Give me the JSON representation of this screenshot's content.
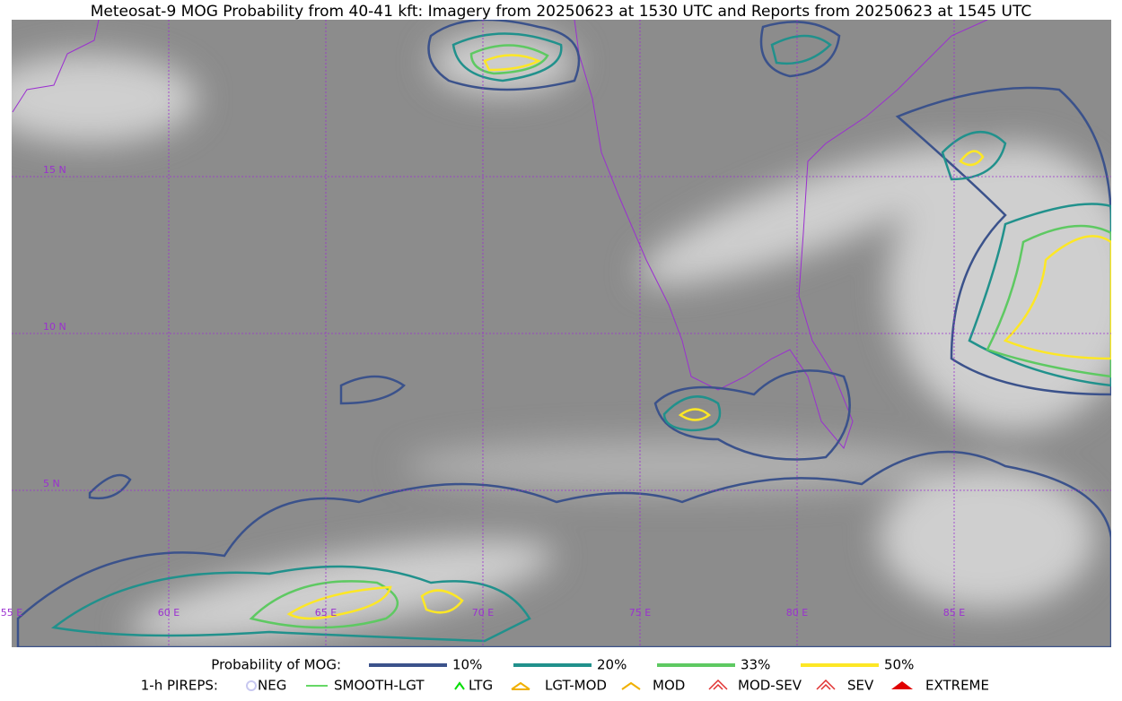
{
  "title": "Meteosat-9 MOG Probability from 40-41 kft: Imagery from 20250623 at 1530 UTC and Reports from 20250623 at 1545 UTC",
  "map": {
    "lon_labels": [
      "55 E",
      "60 E",
      "65 E",
      "70 E",
      "75 E",
      "80 E",
      "85 E"
    ],
    "lat_labels": [
      "15 N",
      "10 N",
      "5 N"
    ]
  },
  "legend": {
    "probability": {
      "label": "Probability of MOG:",
      "items": [
        {
          "label": "10%",
          "color": "#3b528b"
        },
        {
          "label": "20%",
          "color": "#21918c"
        },
        {
          "label": "33%",
          "color": "#5ec962"
        },
        {
          "label": "50%",
          "color": "#fde725"
        }
      ]
    },
    "pireps": {
      "label": "1-h PIREPS:",
      "items": [
        {
          "label": "NEG",
          "color": "#c8c8f0"
        },
        {
          "label": "SMOOTH-LGT",
          "color": "#33cc33"
        },
        {
          "label": "LTG",
          "color": "#00dd00"
        },
        {
          "label": "LGT-MOD",
          "color": "#f0b000"
        },
        {
          "label": "MOD",
          "color": "#f0b000"
        },
        {
          "label": "MOD-SEV",
          "color": "#e03030"
        },
        {
          "label": "SEV",
          "color": "#e03030"
        },
        {
          "label": "EXTREME",
          "color": "#e00000"
        }
      ]
    }
  }
}
